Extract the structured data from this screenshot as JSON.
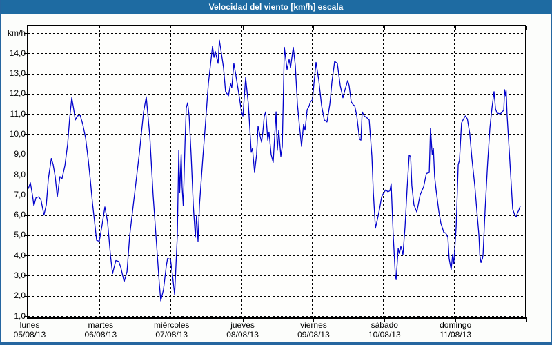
{
  "window": {
    "title": "Velocidad del viento [km/h] escala"
  },
  "colors": {
    "titlebar": "#1e6ba2",
    "frame_border": "#2566a0",
    "line": "#0202cc",
    "grid": "#000000",
    "plot_bg": "#fefefc",
    "text": "#000000"
  },
  "chart_data": {
    "type": "line",
    "title": "Velocidad del viento [km/h] escala",
    "grid": "dashed",
    "legend": "none",
    "y_axis": {
      "unit_label": "km/h",
      "min": 1.0,
      "max": 15.0,
      "tick_step": 1.0,
      "tick_labels": [
        "km/h",
        "14,0",
        "13,0",
        "12,0",
        "11,0",
        "10,0",
        "9,0",
        "8,0",
        "7,0",
        "6,0",
        "5,0",
        "4,0",
        "3,0",
        "2,0",
        "1,0"
      ]
    },
    "x_axis": {
      "range_hours": [
        0,
        168
      ],
      "days": [
        {
          "name": "lunes",
          "date": "05/08/13"
        },
        {
          "name": "martes",
          "date": "06/08/13"
        },
        {
          "name": "miércoles",
          "date": "07/08/13"
        },
        {
          "name": "jueves",
          "date": "08/08/13"
        },
        {
          "name": "viernes",
          "date": "09/08/13"
        },
        {
          "name": "sábado",
          "date": "10/08/13"
        },
        {
          "name": "domingo",
          "date": "11/08/13"
        }
      ]
    },
    "series": [
      {
        "name": "Velocidad del viento",
        "unit": "km/h",
        "points_hour_kmh": [
          [
            0,
            7.3
          ],
          [
            0.7,
            7.6
          ],
          [
            1.4,
            7.0
          ],
          [
            1.9,
            6.45
          ],
          [
            2.6,
            6.85
          ],
          [
            3.5,
            6.9
          ],
          [
            4.3,
            6.75
          ],
          [
            5.3,
            6.0
          ],
          [
            6.1,
            6.5
          ],
          [
            6.8,
            7.8
          ],
          [
            7.8,
            8.8
          ],
          [
            8.4,
            8.5
          ],
          [
            9.1,
            7.9
          ],
          [
            9.8,
            6.9
          ],
          [
            10.7,
            7.9
          ],
          [
            11.4,
            7.8
          ],
          [
            12.4,
            8.45
          ],
          [
            13.3,
            9.5
          ],
          [
            14,
            10.8
          ],
          [
            14.7,
            11.8
          ],
          [
            15.4,
            11.2
          ],
          [
            15.9,
            10.7
          ],
          [
            16.6,
            10.9
          ],
          [
            17.5,
            10.95
          ],
          [
            18.4,
            10.5
          ],
          [
            19.4,
            9.8
          ],
          [
            20.3,
            8.7
          ],
          [
            21,
            7.7
          ],
          [
            21.7,
            6.6
          ],
          [
            22.6,
            5.4
          ],
          [
            23.1,
            4.75
          ],
          [
            24,
            4.7
          ],
          [
            24.9,
            5.45
          ],
          [
            25.9,
            6.4
          ],
          [
            26.8,
            5.65
          ],
          [
            27.8,
            4.0
          ],
          [
            28.5,
            3.1
          ],
          [
            29.6,
            3.75
          ],
          [
            30.6,
            3.7
          ],
          [
            31.3,
            3.4
          ],
          [
            32.4,
            2.7
          ],
          [
            33.4,
            3.2
          ],
          [
            34.3,
            5.0
          ],
          [
            35.9,
            7.0
          ],
          [
            37.6,
            9.1
          ],
          [
            39,
            11.1
          ],
          [
            39.9,
            11.85
          ],
          [
            41.1,
            9.9
          ],
          [
            42.2,
            7.0
          ],
          [
            43.4,
            4.5
          ],
          [
            44.3,
            2.6
          ],
          [
            44.8,
            1.75
          ],
          [
            45.7,
            2.3
          ],
          [
            46.7,
            3.5
          ],
          [
            47.1,
            3.85
          ],
          [
            48.1,
            3.8
          ],
          [
            48.8,
            3.0
          ],
          [
            49.5,
            2.05
          ],
          [
            50.4,
            5.0
          ],
          [
            50.9,
            9.2
          ],
          [
            51.2,
            7.1
          ],
          [
            51.7,
            9.0
          ],
          [
            52,
            7.4
          ],
          [
            52.4,
            6.45
          ],
          [
            53,
            9.5
          ],
          [
            53.4,
            11.3
          ],
          [
            53.9,
            11.55
          ],
          [
            54.4,
            10.9
          ],
          [
            55.1,
            8.9
          ],
          [
            55.8,
            6.5
          ],
          [
            56.5,
            4.9
          ],
          [
            56.9,
            6.0
          ],
          [
            57.4,
            4.7
          ],
          [
            57.9,
            6.5
          ],
          [
            59,
            8.8
          ],
          [
            59.8,
            10.3
          ],
          [
            60.9,
            12.5
          ],
          [
            61.8,
            13.7
          ],
          [
            62.3,
            14.35
          ],
          [
            62.8,
            13.8
          ],
          [
            63.2,
            14.1
          ],
          [
            64.2,
            13.5
          ],
          [
            64.6,
            14.65
          ],
          [
            65.3,
            14.0
          ],
          [
            66,
            13.3
          ],
          [
            66.7,
            12.1
          ],
          [
            67.7,
            11.9
          ],
          [
            68.4,
            12.5
          ],
          [
            68.8,
            12.3
          ],
          [
            69.5,
            13.5
          ],
          [
            70.2,
            12.9
          ],
          [
            71.2,
            12.0
          ],
          [
            72.1,
            11.1
          ],
          [
            72.6,
            10.9
          ],
          [
            73.5,
            12.8
          ],
          [
            74.4,
            11.5
          ],
          [
            75.4,
            9.1
          ],
          [
            75.8,
            9.3
          ],
          [
            76.5,
            8.1
          ],
          [
            77.2,
            9.0
          ],
          [
            77.7,
            10.4
          ],
          [
            78.4,
            9.9
          ],
          [
            78.9,
            9.6
          ],
          [
            79.3,
            10.1
          ],
          [
            79.8,
            10.9
          ],
          [
            80.3,
            11.1
          ],
          [
            81,
            9.7
          ],
          [
            81.4,
            10.1
          ],
          [
            82.1,
            9.0
          ],
          [
            82.8,
            8.6
          ],
          [
            83.8,
            11.1
          ],
          [
            84.2,
            9.2
          ],
          [
            84.7,
            10.2
          ],
          [
            85.4,
            8.9
          ],
          [
            85.9,
            9.4
          ],
          [
            86.6,
            14.3
          ],
          [
            87.5,
            13.2
          ],
          [
            88.2,
            13.7
          ],
          [
            88.7,
            13.3
          ],
          [
            89.6,
            14.3
          ],
          [
            90.3,
            13.4
          ],
          [
            91,
            11.5
          ],
          [
            91.7,
            10.4
          ],
          [
            92.2,
            9.7
          ],
          [
            92.4,
            9.4
          ],
          [
            93.1,
            10.5
          ],
          [
            93.6,
            10.2
          ],
          [
            94.3,
            11.2
          ],
          [
            95,
            11.4
          ],
          [
            95.4,
            11.6
          ],
          [
            96.1,
            11.7
          ],
          [
            96.6,
            12.5
          ],
          [
            97.3,
            13.55
          ],
          [
            98.2,
            12.7
          ],
          [
            99.2,
            11.4
          ],
          [
            100.1,
            10.7
          ],
          [
            101,
            10.6
          ],
          [
            102,
            11.5
          ],
          [
            102.7,
            12.6
          ],
          [
            103.6,
            13.6
          ],
          [
            104.5,
            13.5
          ],
          [
            105.5,
            12.4
          ],
          [
            106.4,
            11.8
          ],
          [
            107.1,
            12.2
          ],
          [
            108,
            12.65
          ],
          [
            108.5,
            12.4
          ],
          [
            109.2,
            11.6
          ],
          [
            109.9,
            11.45
          ],
          [
            110.4,
            11.4
          ],
          [
            111.1,
            10.9
          ],
          [
            112,
            9.75
          ],
          [
            112.5,
            9.7
          ],
          [
            112.9,
            11.1
          ],
          [
            113.6,
            10.9
          ],
          [
            114.6,
            10.8
          ],
          [
            115.3,
            10.7
          ],
          [
            116.2,
            8.9
          ],
          [
            116.7,
            7.1
          ],
          [
            117.4,
            5.35
          ],
          [
            118.1,
            5.8
          ],
          [
            118.8,
            6.3
          ],
          [
            119.5,
            6.9
          ],
          [
            120.2,
            7.1
          ],
          [
            120.9,
            7.25
          ],
          [
            121.6,
            7.15
          ],
          [
            122.3,
            7.2
          ],
          [
            122.7,
            7.55
          ],
          [
            123.4,
            5.0
          ],
          [
            124.1,
            3.05
          ],
          [
            124.4,
            2.8
          ],
          [
            125.1,
            4.35
          ],
          [
            125.5,
            4.1
          ],
          [
            126,
            4.45
          ],
          [
            126.7,
            4.05
          ],
          [
            127.4,
            5.4
          ],
          [
            128.1,
            7.3
          ],
          [
            128.8,
            8.95
          ],
          [
            129.3,
            8.9
          ],
          [
            129.7,
            7.45
          ],
          [
            130.4,
            6.5
          ],
          [
            131.4,
            6.15
          ],
          [
            132.5,
            7.0
          ],
          [
            133.7,
            7.4
          ],
          [
            134.6,
            8.05
          ],
          [
            135.6,
            8.1
          ],
          [
            136,
            10.3
          ],
          [
            136.6,
            9.0
          ],
          [
            137,
            9.3
          ],
          [
            137.4,
            7.9
          ],
          [
            137.9,
            7.25
          ],
          [
            138.8,
            6.2
          ],
          [
            139.5,
            5.6
          ],
          [
            140.5,
            5.15
          ],
          [
            141.2,
            5.1
          ],
          [
            141.9,
            4.9
          ],
          [
            142.3,
            3.85
          ],
          [
            142.8,
            3.45
          ],
          [
            143,
            3.3
          ],
          [
            143.5,
            4.05
          ],
          [
            143.9,
            3.6
          ],
          [
            144.7,
            5.4
          ],
          [
            145.4,
            8.5
          ],
          [
            145.8,
            8.7
          ],
          [
            146.5,
            10.55
          ],
          [
            147,
            10.7
          ],
          [
            147.8,
            10.9
          ],
          [
            148.5,
            10.75
          ],
          [
            149.3,
            10.0
          ],
          [
            150,
            8.8
          ],
          [
            151,
            7.45
          ],
          [
            151.7,
            6.2
          ],
          [
            152.4,
            5.0
          ],
          [
            152.7,
            4.0
          ],
          [
            153.1,
            3.65
          ],
          [
            153.6,
            3.85
          ],
          [
            153.8,
            4.05
          ],
          [
            154.5,
            6.3
          ],
          [
            155.3,
            8.5
          ],
          [
            156.1,
            10.3
          ],
          [
            156.8,
            11.3
          ],
          [
            157.5,
            12.1
          ],
          [
            158,
            11.25
          ],
          [
            158.5,
            11.05
          ],
          [
            159.6,
            11.0
          ],
          [
            160.3,
            11.1
          ],
          [
            160.8,
            11.2
          ],
          [
            161.1,
            12.2
          ],
          [
            161.4,
            11.9
          ],
          [
            161.6,
            12.15
          ],
          [
            161.9,
            10.95
          ],
          [
            162.4,
            9.75
          ],
          [
            163.1,
            8.05
          ],
          [
            163.8,
            6.3
          ],
          [
            164.5,
            6.0
          ],
          [
            165,
            5.9
          ],
          [
            165.4,
            6.1
          ],
          [
            165.9,
            6.25
          ],
          [
            166.4,
            6.45
          ]
        ]
      }
    ]
  }
}
